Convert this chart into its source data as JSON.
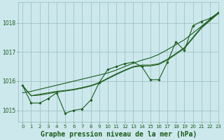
{
  "background_color": "#cce8ed",
  "plot_bg_color": "#cce8ed",
  "grid_color": "#99bbbb",
  "line_color": "#1a5c1a",
  "marker_color": "#1a5c1a",
  "xlabel": "Graphe pression niveau de la mer (hPa)",
  "xlabel_fontsize": 7.0,
  "xlabel_color": "#1a5c1a",
  "ylabel_ticks": [
    1015,
    1016,
    1017,
    1018
  ],
  "xlim": [
    -0.5,
    23
  ],
  "ylim": [
    1014.6,
    1018.7
  ],
  "xticks": [
    0,
    1,
    2,
    3,
    4,
    5,
    6,
    7,
    8,
    9,
    10,
    11,
    12,
    13,
    14,
    15,
    16,
    17,
    18,
    19,
    20,
    21,
    22,
    23
  ],
  "tick_fontsize": 5.0,
  "series_jagged": [
    1015.85,
    1015.25,
    1015.25,
    1015.4,
    1015.6,
    1014.9,
    1015.0,
    1015.05,
    1015.35,
    1015.95,
    1016.4,
    1016.5,
    1016.6,
    1016.65,
    1016.5,
    1016.05,
    1016.05,
    1016.65,
    1017.35,
    1017.05,
    1017.9,
    1018.05,
    1018.15,
    1018.35
  ],
  "series_smooth1": [
    1015.85,
    1015.5,
    1015.55,
    1015.6,
    1015.65,
    1015.68,
    1015.72,
    1015.78,
    1015.85,
    1015.95,
    1016.1,
    1016.25,
    1016.38,
    1016.5,
    1016.55,
    1016.55,
    1016.6,
    1016.75,
    1016.95,
    1017.15,
    1017.5,
    1017.85,
    1018.1,
    1018.35
  ],
  "series_smooth2": [
    1015.85,
    1015.5,
    1015.52,
    1015.57,
    1015.62,
    1015.66,
    1015.7,
    1015.76,
    1015.83,
    1015.93,
    1016.08,
    1016.22,
    1016.36,
    1016.48,
    1016.52,
    1016.52,
    1016.57,
    1016.72,
    1016.92,
    1017.12,
    1017.47,
    1017.82,
    1018.07,
    1018.32
  ],
  "series_straight": [
    1015.6,
    1015.65,
    1015.72,
    1015.79,
    1015.86,
    1015.93,
    1016.0,
    1016.07,
    1016.14,
    1016.21,
    1016.28,
    1016.38,
    1016.5,
    1016.62,
    1016.72,
    1016.8,
    1016.92,
    1017.08,
    1017.25,
    1017.42,
    1017.65,
    1017.88,
    1018.12,
    1018.35
  ]
}
